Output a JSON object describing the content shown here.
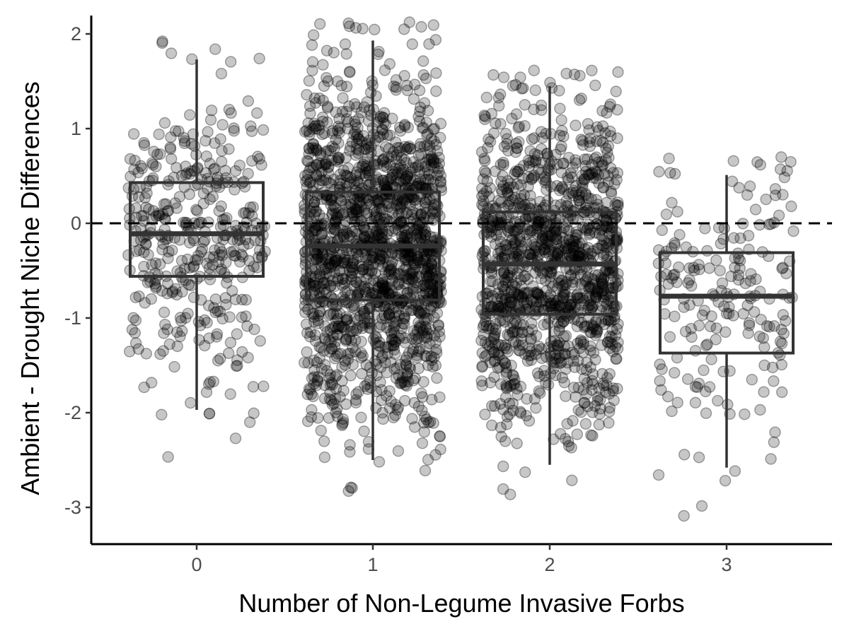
{
  "chart_data": {
    "type": "boxplot",
    "title": "",
    "xlabel": "Number of Non-Legume Invasive Forbs",
    "ylabel": "Ambient - Drought Niche Differences",
    "categories": [
      "0",
      "1",
      "2",
      "3"
    ],
    "y_ticks": [
      "-3",
      "-2",
      "-1",
      "0",
      "1",
      "2"
    ],
    "ylim": [
      -3.4,
      2.2
    ],
    "reference_line": {
      "y": 0,
      "style": "dashed"
    },
    "grid": false,
    "legend": "none",
    "boxes": [
      {
        "category": "0",
        "q1": -0.56,
        "median": -0.11,
        "q3": 0.43,
        "whisker_low": -1.97,
        "whisker_high": 1.73,
        "points_approx": 400
      },
      {
        "category": "1",
        "q1": -0.81,
        "median": -0.24,
        "q3": 0.33,
        "whisker_low": -2.5,
        "whisker_high": 1.93,
        "points_approx": 1600
      },
      {
        "category": "2",
        "q1": -0.96,
        "median": -0.43,
        "q3": 0.12,
        "whisker_low": -2.55,
        "whisker_high": 1.45,
        "points_approx": 1250
      },
      {
        "category": "3",
        "q1": -1.37,
        "median": -0.77,
        "q3": -0.31,
        "whisker_low": -2.58,
        "whisker_high": 0.51,
        "points_approx": 200
      }
    ],
    "colors": {
      "points": "#000000",
      "box_stroke": "#333333",
      "axis": "#000000",
      "reference_line": "#000000"
    }
  }
}
